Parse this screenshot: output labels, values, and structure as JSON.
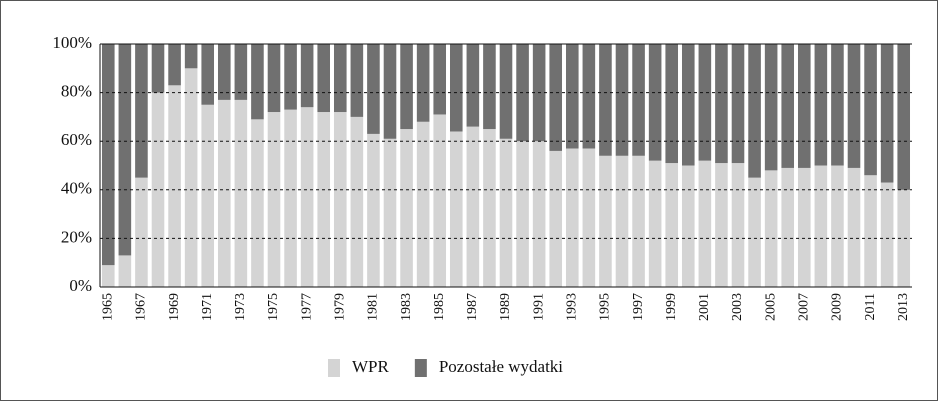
{
  "chart_data": {
    "type": "stacked_bar",
    "categories": [
      "1965",
      null,
      "1967",
      null,
      "1969",
      null,
      "1971",
      null,
      "1973",
      null,
      "1975",
      null,
      "1977",
      null,
      "1979",
      null,
      "1981",
      null,
      "1983",
      null,
      "1985",
      null,
      "1987",
      null,
      "1989",
      null,
      "1991",
      null,
      "1993",
      null,
      "1995",
      null,
      "1997",
      null,
      "1999",
      null,
      "2001",
      null,
      "2003",
      null,
      "2005",
      null,
      "2007",
      null,
      "2009",
      null,
      "2011",
      null,
      "2013"
    ],
    "series": [
      {
        "name": "WPR",
        "color": "#d4d4d4",
        "values": [
          9,
          13,
          45,
          80,
          83,
          90,
          75,
          77,
          77,
          69,
          72,
          73,
          74,
          72,
          72,
          70,
          63,
          61,
          65,
          68,
          71,
          64,
          66,
          65,
          61,
          60,
          60,
          56,
          57,
          57,
          54,
          54,
          54,
          52,
          51,
          50,
          52,
          51,
          51,
          45,
          48,
          49,
          49,
          50,
          50,
          49,
          46,
          43,
          40
        ]
      },
      {
        "name": "Pozostałe wydatki",
        "color": "#707070",
        "values": [
          91,
          87,
          55,
          20,
          17,
          10,
          25,
          23,
          23,
          31,
          28,
          27,
          26,
          28,
          28,
          30,
          37,
          39,
          35,
          32,
          29,
          36,
          34,
          35,
          39,
          40,
          40,
          44,
          43,
          43,
          46,
          46,
          46,
          48,
          49,
          50,
          48,
          49,
          49,
          55,
          52,
          51,
          51,
          50,
          50,
          51,
          54,
          57,
          60
        ]
      }
    ],
    "ylim": [
      0,
      100
    ],
    "yticks": [
      {
        "value": 0,
        "label": "0%"
      },
      {
        "value": 20,
        "label": "20%"
      },
      {
        "value": 40,
        "label": "40%"
      },
      {
        "value": 60,
        "label": "60%"
      },
      {
        "value": 80,
        "label": "80%"
      },
      {
        "value": 100,
        "label": "100%"
      }
    ],
    "grid": true,
    "legend": "bottom"
  }
}
